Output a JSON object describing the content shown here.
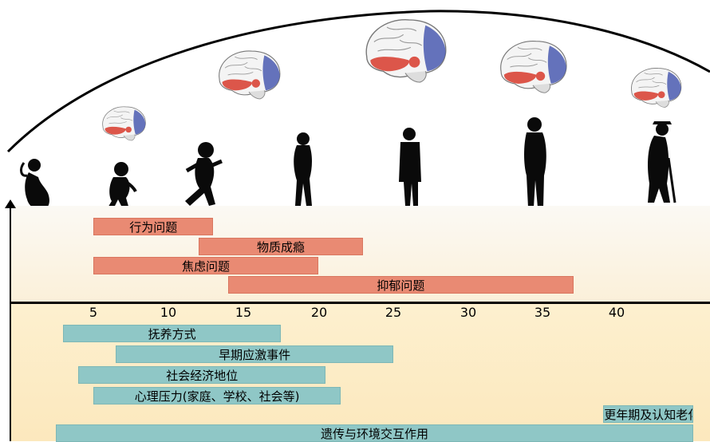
{
  "axis": {
    "ticks": [
      "5",
      "10",
      "15",
      "20",
      "25",
      "30",
      "35",
      "40"
    ]
  },
  "disorders": [
    {
      "label": "行为问题",
      "start": 5,
      "end": 13
    },
    {
      "label": "物质成瘾",
      "start": 12,
      "end": 23
    },
    {
      "label": "焦虑问题",
      "start": 5,
      "end": 20
    },
    {
      "label": "抑郁问题",
      "start": 14,
      "end": 37
    }
  ],
  "factors": [
    {
      "label": "抚养方式",
      "start": 3,
      "end": 17.5
    },
    {
      "label": "早期应激事件",
      "start": 6.5,
      "end": 25
    },
    {
      "label": "社会经济地位",
      "start": 4,
      "end": 20.5
    },
    {
      "label": "心理压力(家庭、学校、社会等)",
      "start": 5,
      "end": 21.5
    },
    {
      "label": "更年期及认知老化",
      "start": 39,
      "end": 45
    },
    {
      "label": "遗传与环境交互作用",
      "start": 2.5,
      "end": 45
    }
  ],
  "colors": {
    "disorder_bar": "#e98a73",
    "factor_bar": "#8fc7c6",
    "axis": "#000000"
  },
  "icons": [
    "brain-icon",
    "person-silhouette-icon"
  ]
}
